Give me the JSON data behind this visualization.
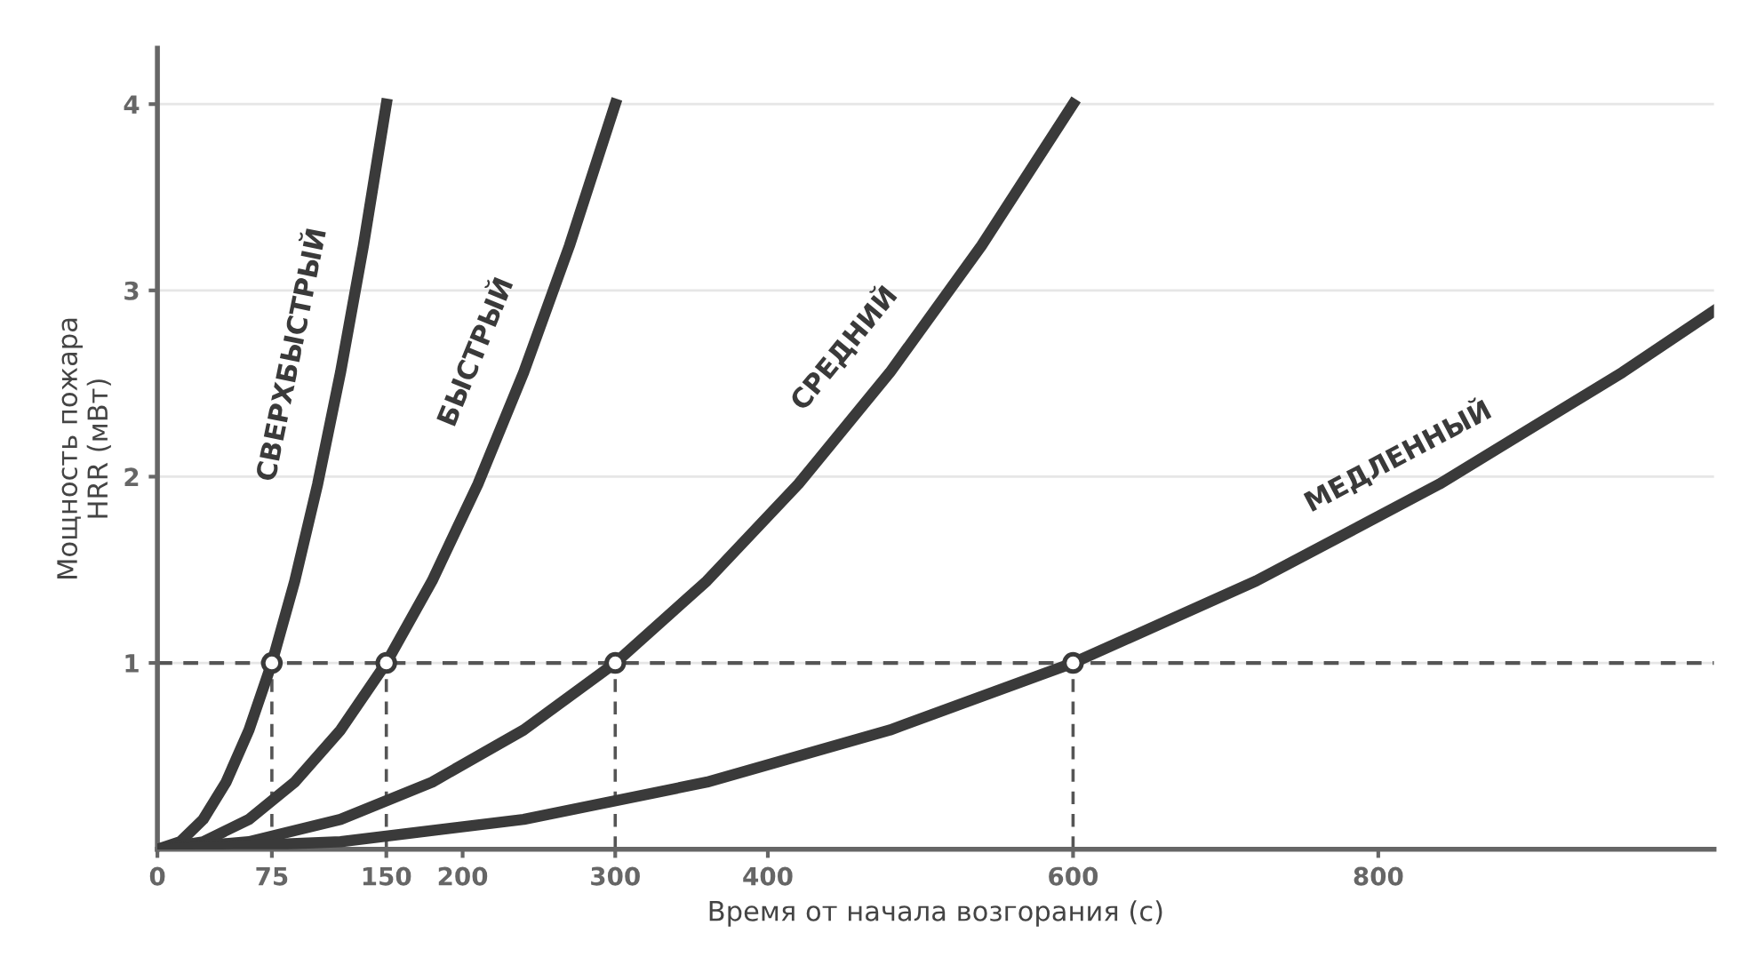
{
  "chart_data": {
    "type": "line",
    "xlabel": "Время от начала возгорания (с)",
    "ylabel": "Мощность пожара\nHRR (мВт)",
    "xlim": [
      0,
      1020
    ],
    "ylim": [
      0,
      4.3
    ],
    "xticks": [
      0,
      75,
      150,
      200,
      300,
      400,
      600,
      800
    ],
    "yticks": [
      1,
      2,
      3,
      4
    ],
    "grid": "y",
    "ref_lines": [
      {
        "axis": "y",
        "value": 1,
        "color": "#555555",
        "line_style": "dashed"
      }
    ],
    "series": [
      {
        "name": "СВЕРХБЫСТРЫЙ",
        "color": "#3a3a3a",
        "x": [
          0,
          15,
          30,
          45,
          60,
          75,
          90,
          105,
          120,
          135,
          150
        ],
        "values": [
          0,
          0.04,
          0.16,
          0.36,
          0.64,
          1,
          1.44,
          1.96,
          2.56,
          3.24,
          4
        ]
      },
      {
        "name": "БЫСТРЫЙ",
        "color": "#3a3a3a",
        "x": [
          0,
          30,
          60,
          90,
          120,
          150,
          180,
          210,
          240,
          270,
          300
        ],
        "values": [
          0,
          0.04,
          0.16,
          0.36,
          0.64,
          1,
          1.44,
          1.96,
          2.56,
          3.24,
          4
        ]
      },
      {
        "name": "СРЕДНИЙ",
        "color": "#3a3a3a",
        "x": [
          0,
          60,
          120,
          180,
          240,
          300,
          360,
          420,
          480,
          540,
          600
        ],
        "values": [
          0,
          0.04,
          0.16,
          0.36,
          0.64,
          1,
          1.44,
          1.96,
          2.56,
          3.24,
          4
        ]
      },
      {
        "name": "МЕДЛЕННЫЙ",
        "color": "#3a3a3a",
        "x": [
          0,
          120,
          240,
          360,
          480,
          600,
          720,
          840,
          960,
          1020
        ],
        "values": [
          0,
          0.04,
          0.16,
          0.36,
          0.64,
          1,
          1.44,
          1.96,
          2.56,
          2.89
        ]
      },
      {
        "type": "line",
        "line_style": "dashed",
        "color": "#555555",
        "x": [
          75,
          75
        ],
        "values": [
          0,
          1
        ]
      },
      {
        "type": "line",
        "line_style": "dashed",
        "color": "#555555",
        "x": [
          150,
          150
        ],
        "values": [
          0,
          1
        ]
      },
      {
        "type": "line",
        "line_style": "dashed",
        "color": "#555555",
        "x": [
          300,
          300
        ],
        "values": [
          0,
          1
        ]
      },
      {
        "type": "line",
        "line_style": "dashed",
        "color": "#555555",
        "x": [
          600,
          600
        ],
        "values": [
          0,
          1
        ]
      },
      {
        "type": "scatter",
        "marker": "circle",
        "color": "#3a3a3a",
        "x": [
          75,
          150,
          300,
          600
        ],
        "values": [
          1,
          1,
          1,
          1
        ]
      }
    ]
  }
}
